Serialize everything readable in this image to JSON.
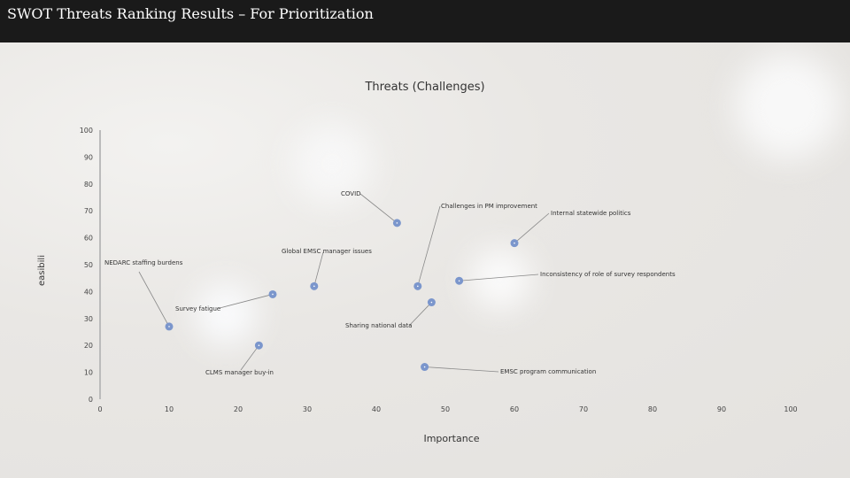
{
  "slide_title": "SWOT Threats Ranking Results – For Prioritization",
  "chart_data": {
    "type": "scatter",
    "title": "Threats (Challenges)",
    "xlabel": "Importance",
    "ylabel": "easibili",
    "xlim": [
      0,
      100
    ],
    "ylim": [
      0,
      100
    ],
    "xticks": [
      0,
      10,
      20,
      30,
      40,
      50,
      60,
      70,
      80,
      90,
      100
    ],
    "yticks": [
      0,
      10,
      20,
      30,
      40,
      50,
      60,
      70,
      80,
      90,
      100
    ],
    "grid": false,
    "marker_color": "#7b96cc",
    "points": [
      {
        "label": "COVID",
        "x": 43,
        "y": 65.5
      },
      {
        "label": "Challenges in PM improvement",
        "x": 46,
        "y": 42
      },
      {
        "label": "Internal statewide politics",
        "x": 60,
        "y": 58
      },
      {
        "label": "Global EMSC manager issues",
        "x": 31,
        "y": 42
      },
      {
        "label": "NEDARC staffing burdens",
        "x": 10,
        "y": 27
      },
      {
        "label": "Inconsistency of role of survey respondents",
        "x": 52,
        "y": 44
      },
      {
        "label": "Survey fatigue",
        "x": 25,
        "y": 39
      },
      {
        "label": "Sharing national data",
        "x": 48,
        "y": 36
      },
      {
        "label": "CLMS manager buy-in",
        "x": 23,
        "y": 20
      },
      {
        "label": "EMSC program communication",
        "x": 47,
        "y": 12
      }
    ]
  }
}
